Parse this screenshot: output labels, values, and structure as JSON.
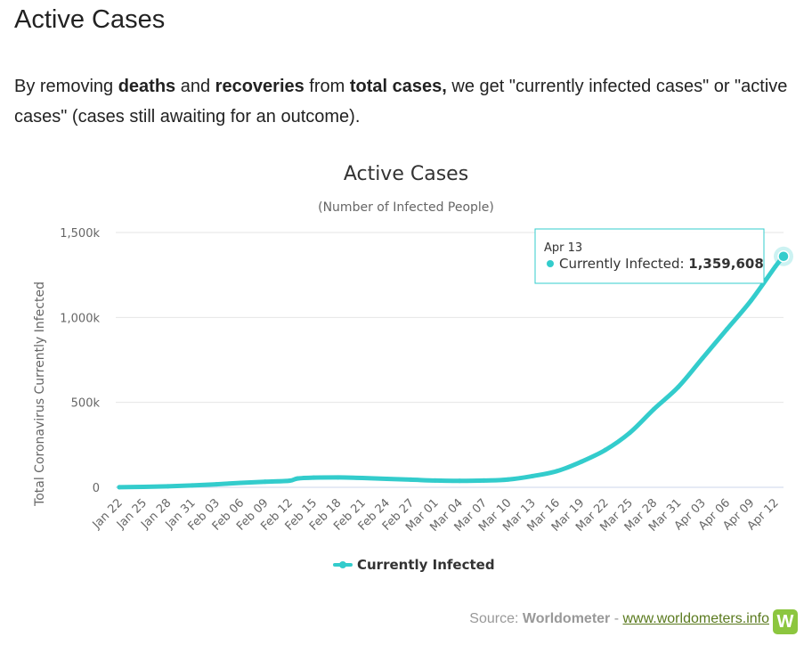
{
  "section": {
    "title": "Active Cases",
    "intro": {
      "p1": "By removing ",
      "b1": "deaths",
      "p2": " and ",
      "b2": "recoveries",
      "p3": " from ",
      "b3": "total cases,",
      "p4": " we get \"currently infected cases\" or \"active cases\" (cases still awaiting for an outcome)."
    }
  },
  "chart_data": {
    "type": "area",
    "title": "Active Cases",
    "subtitle": "(Number of Infected People)",
    "ylabel": "Total Coronavirus Currently Infected",
    "xlabel": "",
    "ylim": [
      0,
      1500000
    ],
    "yticks": [
      0,
      500000,
      1000000,
      1500000
    ],
    "ytick_labels": [
      "0",
      "500k",
      "1,000k",
      "1,500k"
    ],
    "x_tick_labels": [
      "Jan 22",
      "Jan 25",
      "Jan 28",
      "Jan 31",
      "Feb 03",
      "Feb 06",
      "Feb 09",
      "Feb 12",
      "Feb 15",
      "Feb 18",
      "Feb 21",
      "Feb 24",
      "Feb 27",
      "Mar 01",
      "Mar 04",
      "Mar 07",
      "Mar 10",
      "Mar 13",
      "Mar 16",
      "Mar 19",
      "Mar 22",
      "Mar 25",
      "Mar 28",
      "Mar 31",
      "Apr 03",
      "Apr 06",
      "Apr 09",
      "Apr 12"
    ],
    "grid": true,
    "legend_position": "bottom-center",
    "series": [
      {
        "name": "Currently Infected",
        "color": "#33cccc",
        "x": [
          "Jan 22",
          "Jan 25",
          "Jan 28",
          "Jan 31",
          "Feb 03",
          "Feb 06",
          "Feb 09",
          "Feb 12",
          "Feb 13",
          "Feb 15",
          "Feb 18",
          "Feb 21",
          "Feb 24",
          "Feb 27",
          "Mar 01",
          "Mar 04",
          "Mar 07",
          "Mar 10",
          "Mar 13",
          "Mar 16",
          "Mar 19",
          "Mar 22",
          "Mar 25",
          "Mar 28",
          "Mar 31",
          "Apr 03",
          "Apr 06",
          "Apr 09",
          "Apr 12",
          "Apr 13"
        ],
        "values": [
          500,
          2500,
          6000,
          11000,
          18000,
          26000,
          33000,
          39000,
          52000,
          57000,
          58000,
          55000,
          50000,
          45000,
          40000,
          38000,
          40000,
          46000,
          66000,
          95000,
          150000,
          220000,
          320000,
          460000,
          590000,
          760000,
          930000,
          1100000,
          1300000,
          1359608
        ]
      }
    ],
    "tooltip": {
      "date": "Apr 13",
      "series_label": "Currently Infected: ",
      "value_label": "1,359,608"
    }
  },
  "source": {
    "prefix": "Source: ",
    "name": "Worldometer",
    "sep": " - ",
    "link": "www.worldometers.info",
    "logo_letter": "W"
  }
}
